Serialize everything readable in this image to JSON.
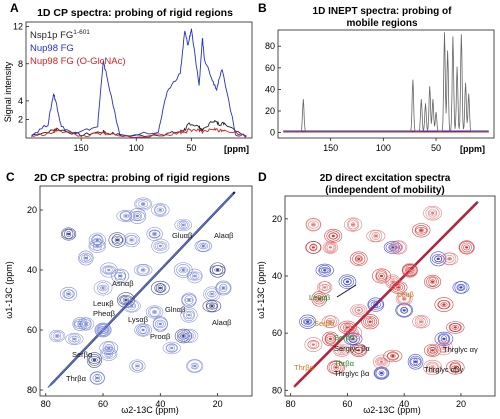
{
  "panels": {
    "A": {
      "letter": "A",
      "title": "1D CP spectra: probing of rigid regions",
      "ylabel": "Signal intensity",
      "xunit": "[ppm]",
      "legend": [
        {
          "prefix": "Nsp1p FG",
          "sup": "1-601",
          "color": "#222222"
        },
        {
          "prefix": "Nup98 FG",
          "sup": "",
          "color": "#2430c8"
        },
        {
          "prefix": "Nup98 FG (O-GlcNAc)",
          "sup": "",
          "color": "#d42020"
        }
      ]
    },
    "B": {
      "letter": "B",
      "title_line1": "1D INEPT spectra: probing of",
      "title_line2": "mobile regions",
      "xunit": "[ppm]"
    },
    "C": {
      "letter": "C",
      "title": "2D CP spectra: probing  of rigid regions",
      "ylabel": "ω1-13C (ppm)",
      "xlabel": "ω2-13C (ppm)",
      "assignments": [
        "Gluαβ",
        "Alaαβ",
        "Asnαβ",
        "Leuκβ",
        "Pheαβ",
        "Glnαβ",
        "Alaαβ",
        "Lysαβ",
        "Proαβ",
        "Serβα",
        "Thrβα"
      ]
    },
    "D": {
      "letter": "D",
      "title_line1": "2D direct excitation spectra",
      "title_line2": "(independent of mobility)",
      "ylabel": "ω1-13C (ppm)",
      "xlabel": "ω2-13C (ppm)",
      "assignments": [
        "Leuαβ",
        "Leuβ",
        "Serβα",
        "Serβα",
        "Serglyc βα",
        "Thrβα",
        "Thrβα",
        "Thrglyc βα",
        "Thrglyc αγ",
        "Thrglyc αβγ"
      ]
    }
  },
  "chart_data": [
    {
      "type": "line",
      "panel": "A",
      "title": "1D CP spectra: probing of rigid regions",
      "xlabel": "[ppm]",
      "ylabel": "Signal intensity",
      "xlim": [
        200,
        -5
      ],
      "ylim": [
        0,
        12.5
      ],
      "x_ticks": [
        150,
        100,
        50
      ],
      "y_ticks": [
        2,
        4,
        8,
        12
      ],
      "series": [
        {
          "name": "Nsp1p FG 1-601",
          "color": "#222222",
          "x": [
            195,
            175,
            172,
            150,
            130,
            128,
            110,
            75,
            60,
            55,
            52,
            43,
            40,
            30,
            25,
            20,
            0
          ],
          "y": [
            0.3,
            0.8,
            1.0,
            0.3,
            0.7,
            0.6,
            0.2,
            0.4,
            0.7,
            1.0,
            1.6,
            1.2,
            0.8,
            1.9,
            1.5,
            1.6,
            0.2
          ]
        },
        {
          "name": "Nup98 FG",
          "color": "#2430c8",
          "x": [
            195,
            180,
            175,
            172,
            168,
            155,
            135,
            130,
            127,
            115,
            80,
            72,
            60,
            56,
            53,
            50,
            43,
            40,
            38,
            30,
            27,
            22,
            10,
            0
          ],
          "y": [
            0.3,
            1.5,
            4.8,
            3.5,
            1.2,
            0.4,
            1.3,
            8.3,
            6.8,
            0.3,
            0.6,
            5.0,
            7.0,
            11.5,
            10.0,
            11.8,
            5.5,
            10.8,
            8.5,
            6.0,
            5.3,
            7.5,
            0.4,
            0.2
          ]
        },
        {
          "name": "Nup98 FG (O-GlcNAc)",
          "color": "#d42020",
          "x": [
            195,
            175,
            172,
            150,
            130,
            128,
            110,
            75,
            60,
            55,
            52,
            43,
            40,
            30,
            25,
            20,
            0
          ],
          "y": [
            0.2,
            0.6,
            0.9,
            0.2,
            0.5,
            0.5,
            0.15,
            0.3,
            0.6,
            0.7,
            0.9,
            0.8,
            0.6,
            1.0,
            0.8,
            0.9,
            0.2
          ]
        }
      ]
    },
    {
      "type": "line",
      "panel": "B",
      "title": "1D INEPT spectra: probing of mobile regions",
      "xlabel": "[ppm]",
      "xlim": [
        200,
        -5
      ],
      "ylim": [
        -5,
        95
      ],
      "x_ticks": [
        150,
        100,
        50
      ],
      "y_ticks": [
        0,
        20,
        40,
        60,
        80
      ],
      "peaks": [
        {
          "ppm": 176,
          "h": 30,
          "color": "#555555"
        },
        {
          "ppm": 72,
          "h": 48,
          "color": "#555555"
        },
        {
          "ppm": 64,
          "h": 30,
          "color": "#555555"
        },
        {
          "ppm": 60,
          "h": 26,
          "color": "#555555"
        },
        {
          "ppm": 56,
          "h": 42,
          "color": "#555555"
        },
        {
          "ppm": 53,
          "h": 30,
          "color": "#555555"
        },
        {
          "ppm": 50,
          "h": 18,
          "color": "#555555"
        },
        {
          "ppm": 42,
          "h": 92,
          "color": "#555555"
        },
        {
          "ppm": 39,
          "h": 75,
          "color": "#555555"
        },
        {
          "ppm": 34,
          "h": 88,
          "color": "#555555"
        },
        {
          "ppm": 30,
          "h": 60,
          "color": "#555555"
        },
        {
          "ppm": 26,
          "h": 90,
          "color": "#555555"
        },
        {
          "ppm": 22,
          "h": 45,
          "color": "#555555"
        },
        {
          "ppm": 19,
          "h": 35,
          "color": "#555555"
        }
      ],
      "baselines": [
        {
          "name": "Nup98 FG",
          "color": "#2430c8",
          "level": 1.5
        },
        {
          "name": "Nup98 FG (O-GlcNAc)",
          "color": "#d42020",
          "level": 0.5
        }
      ]
    },
    {
      "type": "heatmap",
      "panel": "C",
      "title": "2D CP spectra: probing  of rigid regions",
      "xlabel": "ω2-13C (ppm)",
      "ylabel": "ω1-13C (ppm)",
      "xlim": [
        82,
        8
      ],
      "ylim": [
        12,
        82
      ],
      "x_ticks": [
        80,
        60,
        40,
        20
      ],
      "y_ticks": [
        20,
        40,
        60,
        80
      ],
      "diagonal": [
        [
          78,
          78
        ],
        [
          14,
          14
        ]
      ],
      "clusters": [
        {
          "x": 72,
          "y": 28
        },
        {
          "x": 66,
          "y": 36
        },
        {
          "x": 62,
          "y": 30
        },
        {
          "x": 55,
          "y": 30
        },
        {
          "x": 48,
          "y": 22
        },
        {
          "x": 42,
          "y": 28
        },
        {
          "x": 40,
          "y": 46
        },
        {
          "x": 32,
          "y": 40
        },
        {
          "x": 25,
          "y": 32
        },
        {
          "x": 20,
          "y": 40
        },
        {
          "x": 18,
          "y": 46
        },
        {
          "x": 54,
          "y": 42
        },
        {
          "x": 52,
          "y": 50
        },
        {
          "x": 40,
          "y": 58
        },
        {
          "x": 30,
          "y": 50
        },
        {
          "x": 22,
          "y": 52
        },
        {
          "x": 60,
          "y": 60
        },
        {
          "x": 58,
          "y": 66
        },
        {
          "x": 63,
          "y": 70
        },
        {
          "x": 62,
          "y": 76
        },
        {
          "x": 46,
          "y": 60
        },
        {
          "x": 32,
          "y": 62
        },
        {
          "x": 68,
          "y": 58
        },
        {
          "x": 72,
          "y": 48
        }
      ]
    },
    {
      "type": "heatmap",
      "panel": "D",
      "title": "2D direct excitation spectra (independent of mobility)",
      "xlabel": "ω2-13C (ppm)",
      "ylabel": "ω1-13C (ppm)",
      "xlim": [
        82,
        8
      ],
      "ylim": [
        12,
        82
      ],
      "x_ticks": [
        80,
        60,
        40,
        20
      ],
      "y_ticks": [
        20,
        40,
        60,
        80
      ],
      "diagonal": [
        [
          78,
          78
        ],
        [
          14,
          14
        ]
      ],
      "clusters_red": [
        {
          "x": 72,
          "y": 30
        },
        {
          "x": 65,
          "y": 26
        },
        {
          "x": 56,
          "y": 34
        },
        {
          "x": 48,
          "y": 40
        },
        {
          "x": 42,
          "y": 44
        },
        {
          "x": 38,
          "y": 38
        },
        {
          "x": 30,
          "y": 42
        },
        {
          "x": 26,
          "y": 50
        },
        {
          "x": 22,
          "y": 58
        },
        {
          "x": 18,
          "y": 30
        },
        {
          "x": 60,
          "y": 58
        },
        {
          "x": 66,
          "y": 62
        },
        {
          "x": 56,
          "y": 66
        },
        {
          "x": 64,
          "y": 72
        },
        {
          "x": 44,
          "y": 68
        },
        {
          "x": 30,
          "y": 66
        },
        {
          "x": 22,
          "y": 72
        },
        {
          "x": 70,
          "y": 48
        },
        {
          "x": 34,
          "y": 24
        },
        {
          "x": 52,
          "y": 56
        }
      ],
      "clusters_blue": [
        {
          "x": 68,
          "y": 38
        },
        {
          "x": 60,
          "y": 42
        },
        {
          "x": 50,
          "y": 50
        },
        {
          "x": 40,
          "y": 52
        },
        {
          "x": 28,
          "y": 34
        },
        {
          "x": 20,
          "y": 44
        },
        {
          "x": 58,
          "y": 62
        },
        {
          "x": 48,
          "y": 74
        },
        {
          "x": 36,
          "y": 70
        },
        {
          "x": 26,
          "y": 62
        },
        {
          "x": 74,
          "y": 56
        },
        {
          "x": 44,
          "y": 30
        }
      ]
    }
  ]
}
